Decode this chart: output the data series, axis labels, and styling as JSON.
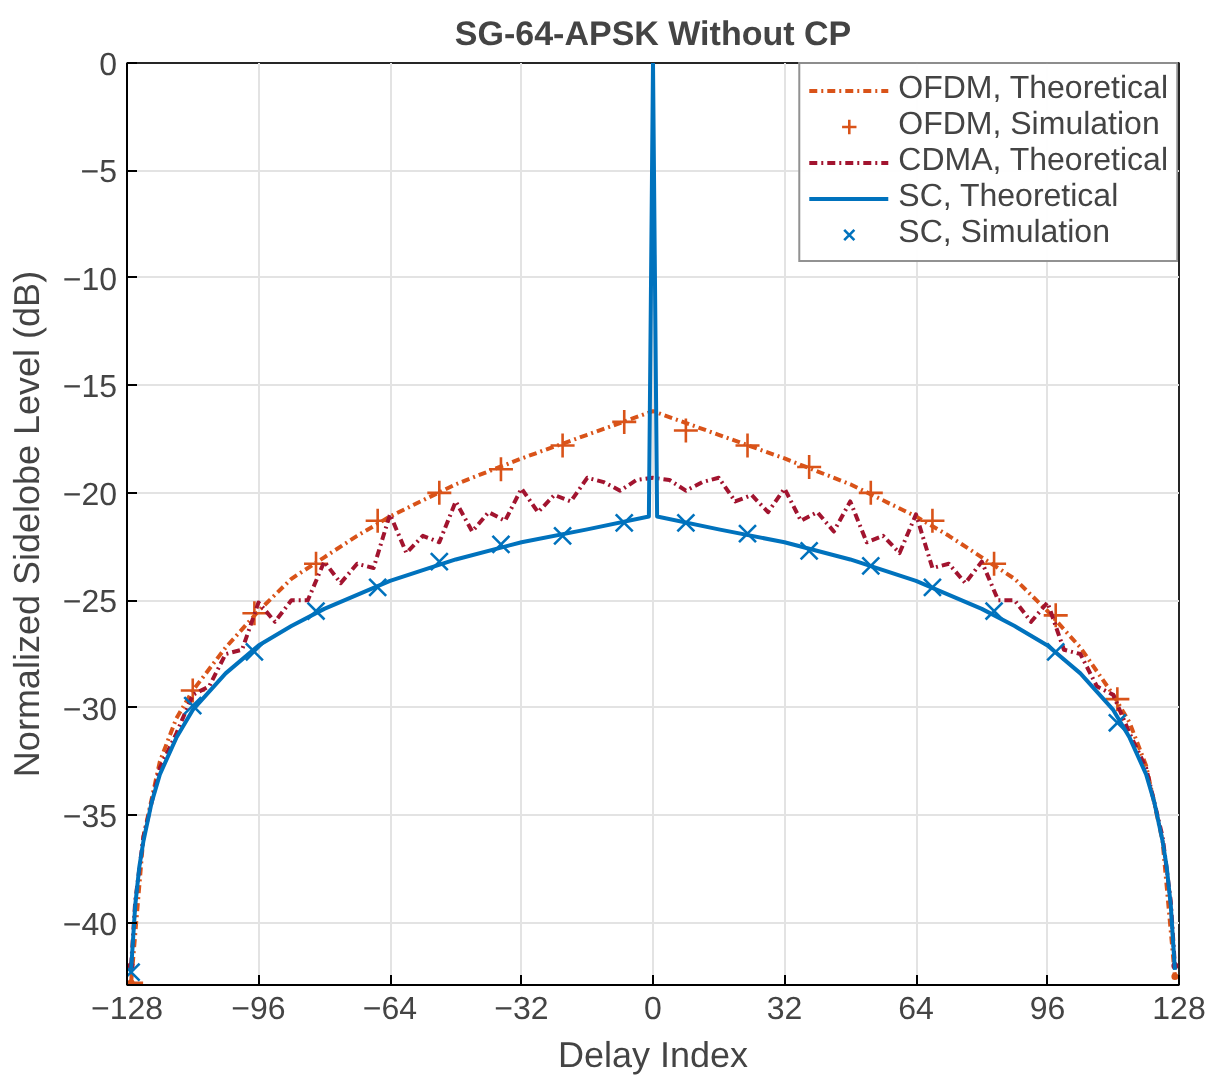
{
  "chart_data": {
    "type": "line",
    "title": "SG-64-APSK Without CP",
    "xlabel": "Delay Index",
    "ylabel": "Normalized Sidelobe Level (dB)",
    "xlim": [
      -128,
      128
    ],
    "ylim": [
      -42.9,
      0
    ],
    "xticks": [
      -128,
      -96,
      -64,
      -32,
      0,
      32,
      64,
      96,
      128
    ],
    "yticks": [
      -40,
      -35,
      -30,
      -25,
      -20,
      -15,
      -10,
      -5,
      0
    ],
    "grid": true,
    "legend": "top right",
    "series": [
      {
        "name": "OFDM, Theoretical",
        "line_style": "dashdot",
        "color": "#d95319",
        "x": [
          -127,
          -124,
          -120,
          -116,
          -112,
          -104,
          -96,
          -88,
          -80,
          -72,
          -64,
          -48,
          -32,
          -16,
          0,
          16,
          32,
          48,
          64,
          72,
          80,
          88,
          96,
          104,
          112,
          116,
          120,
          124,
          127
        ],
        "values": [
          -42.8,
          -36.0,
          -32.5,
          -30.5,
          -29.2,
          -27.2,
          -25.5,
          -24.0,
          -23.0,
          -22.0,
          -21.1,
          -19.6,
          -18.4,
          -17.3,
          -16.2,
          -17.3,
          -18.4,
          -19.6,
          -21.1,
          -22.0,
          -23.0,
          -24.0,
          -25.5,
          -27.2,
          -29.4,
          -30.7,
          -32.7,
          -36.2,
          -42.5
        ]
      },
      {
        "name": "OFDM, Simulation",
        "type": "scatter",
        "marker": "cross",
        "color": "#d95319",
        "x": [
          -127,
          -112,
          -97,
          -82,
          -67,
          -52,
          -37,
          -22,
          -7,
          8,
          23,
          38,
          53,
          68,
          83,
          98,
          113
        ],
        "values": [
          -42.8,
          -29.2,
          -25.6,
          -23.3,
          -21.3,
          -20.0,
          -18.9,
          -17.8,
          -16.7,
          -17.1,
          -17.8,
          -18.8,
          -20.0,
          -21.3,
          -23.3,
          -25.7,
          -29.6
        ]
      },
      {
        "name": "CDMA, Theoretical",
        "line_style": "dashdot",
        "color": "#a2142f",
        "x": [
          -127,
          -126,
          -124,
          -120,
          -116,
          -112,
          -108,
          -104,
          -100,
          -96,
          -92,
          -88,
          -84,
          -80,
          -76,
          -72,
          -68,
          -64,
          -60,
          -56,
          -52,
          -48,
          -44,
          -40,
          -36,
          -32,
          -28,
          -24,
          -20,
          -16,
          -12,
          -8,
          -4,
          0,
          4,
          8,
          12,
          16,
          20,
          24,
          28,
          32,
          36,
          40,
          44,
          48,
          52,
          56,
          60,
          64,
          68,
          72,
          76,
          80,
          84,
          88,
          92,
          96,
          100,
          104,
          108,
          112,
          116,
          120,
          124,
          126,
          127
        ],
        "values": [
          -42.0,
          -39.0,
          -36.0,
          -32.8,
          -31.2,
          -29.4,
          -29.0,
          -27.5,
          -27.3,
          -25.1,
          -26.0,
          -25.0,
          -25.0,
          -23.2,
          -24.2,
          -23.3,
          -23.5,
          -21.0,
          -22.8,
          -22.0,
          -22.3,
          -20.4,
          -21.8,
          -20.9,
          -21.3,
          -19.8,
          -20.9,
          -20.1,
          -20.4,
          -19.3,
          -19.5,
          -19.9,
          -19.4,
          -19.3,
          -19.4,
          -19.9,
          -19.5,
          -19.3,
          -20.4,
          -20.1,
          -20.9,
          -19.8,
          -21.3,
          -20.9,
          -21.8,
          -20.4,
          -22.3,
          -22.0,
          -22.8,
          -21.0,
          -23.5,
          -23.3,
          -24.2,
          -23.2,
          -25.0,
          -25.0,
          -26.0,
          -25.1,
          -27.3,
          -27.5,
          -29.0,
          -29.4,
          -31.2,
          -32.8,
          -36.0,
          -39.0,
          -42.0
        ]
      },
      {
        "name": "SC, Theoretical",
        "line_style": "solid",
        "color": "#0072bd",
        "x": [
          -127,
          -126,
          -125,
          -124,
          -122,
          -120,
          -116,
          -112,
          -104,
          -96,
          -88,
          -80,
          -64,
          -48,
          -32,
          -16,
          -1,
          0,
          1,
          16,
          32,
          48,
          64,
          80,
          88,
          96,
          104,
          112,
          116,
          120,
          122,
          124,
          125,
          126,
          127
        ],
        "values": [
          -42.2,
          -39.2,
          -37.4,
          -36.2,
          -34.4,
          -33.1,
          -31.4,
          -30.1,
          -28.4,
          -27.1,
          -26.2,
          -25.4,
          -24.1,
          -23.1,
          -22.3,
          -21.7,
          -21.1,
          0,
          -21.1,
          -21.7,
          -22.3,
          -23.1,
          -24.1,
          -25.4,
          -26.2,
          -27.1,
          -28.4,
          -30.1,
          -31.4,
          -33.1,
          -34.4,
          -36.2,
          -37.4,
          -39.2,
          -42.2
        ]
      },
      {
        "name": "SC, Simulation",
        "type": "scatter",
        "marker": "x",
        "color": "#0072bd",
        "x": [
          -127,
          -112,
          -97,
          -82,
          -67,
          -52,
          -37,
          -22,
          -7,
          8,
          23,
          38,
          53,
          68,
          83,
          98,
          113
        ],
        "values": [
          -42.3,
          -29.9,
          -27.4,
          -25.5,
          -24.4,
          -23.2,
          -22.4,
          -22.0,
          -21.4,
          -21.4,
          -21.9,
          -22.7,
          -23.4,
          -24.4,
          -25.5,
          -27.4,
          -30.7
        ]
      }
    ]
  }
}
